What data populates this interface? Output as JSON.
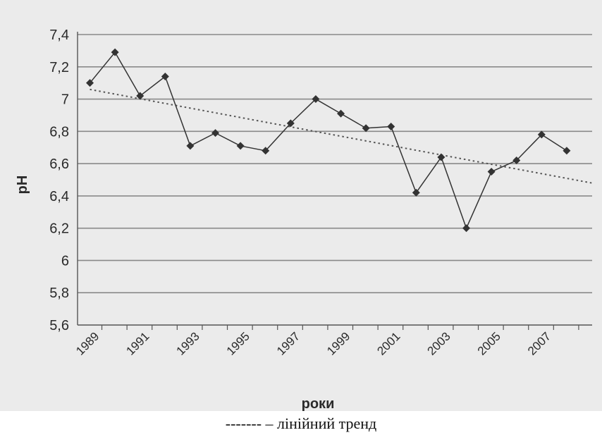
{
  "chart_data": {
    "type": "line",
    "xlabel": "роки",
    "ylabel": "pH",
    "ylim": [
      5.6,
      7.4
    ],
    "yticks": [
      "7,4",
      "7,2",
      "7",
      "6,8",
      "6,6",
      "6,4",
      "6,2",
      "6",
      "5,8",
      "5,6"
    ],
    "xticks": [
      "1989",
      "1991",
      "1993",
      "1995",
      "1997",
      "1999",
      "2001",
      "2003",
      "2005",
      "2007"
    ],
    "grid": true,
    "series": [
      {
        "x": [
          1989,
          1990,
          1991,
          1992,
          1993,
          1994,
          1995,
          1996,
          1997,
          1998,
          1999,
          2000,
          2001,
          2002,
          2003,
          2004,
          2005,
          2006,
          2007,
          2008
        ],
        "values": [
          7.1,
          7.29,
          7.02,
          7.14,
          6.71,
          6.79,
          6.71,
          6.68,
          6.85,
          7.0,
          6.91,
          6.82,
          6.83,
          6.42,
          6.64,
          6.2,
          6.55,
          6.62,
          6.78,
          6.68
        ]
      }
    ],
    "trend": {
      "style": "dotted",
      "x": [
        1989,
        2009
      ],
      "values": [
        7.06,
        6.48
      ]
    },
    "colors": {
      "series": "#333333",
      "trend": "#555555",
      "grid": "#8a8a8a",
      "background": "#ebebeb"
    }
  },
  "caption": "------- – лінійний тренд"
}
